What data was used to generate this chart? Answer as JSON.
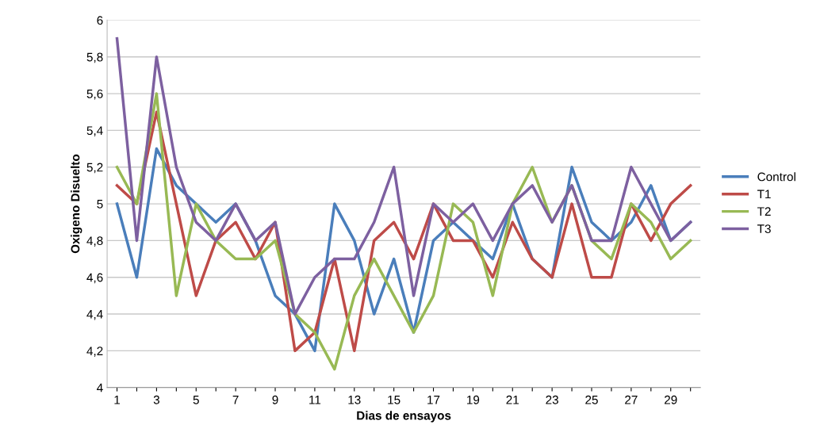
{
  "chart_data": {
    "type": "line",
    "xlabel": "Dias de ensayos",
    "ylabel": "Oxigeno Disuelto",
    "categories": [
      "1",
      null,
      "3",
      null,
      "5",
      null,
      "7",
      null,
      "9",
      null,
      "11",
      null,
      "13",
      null,
      "15",
      null,
      "17",
      null,
      "19",
      null,
      "21",
      null,
      "23",
      null,
      "25",
      null,
      "27",
      null,
      "29",
      null
    ],
    "series": [
      {
        "name": "Control",
        "color": "#4a7ebb",
        "values": [
          5.0,
          4.6,
          5.3,
          5.1,
          5.0,
          4.9,
          5.0,
          4.8,
          4.5,
          4.4,
          4.2,
          5.0,
          4.8,
          4.4,
          4.7,
          4.3,
          4.8,
          4.9,
          4.8,
          4.7,
          5.0,
          4.7,
          4.6,
          5.2,
          4.9,
          4.8,
          4.9,
          5.1,
          4.8,
          4.9
        ]
      },
      {
        "name": "T1",
        "color": "#be4b48",
        "values": [
          5.1,
          5.0,
          5.5,
          5.0,
          4.5,
          4.8,
          4.9,
          4.7,
          4.9,
          4.2,
          4.3,
          4.7,
          4.2,
          4.8,
          4.9,
          4.7,
          5.0,
          4.8,
          4.8,
          4.6,
          4.9,
          4.7,
          4.6,
          5.0,
          4.6,
          4.6,
          5.0,
          4.8,
          5.0,
          5.1
        ]
      },
      {
        "name": "T2",
        "color": "#98b954",
        "values": [
          5.2,
          5.0,
          5.6,
          4.5,
          5.0,
          4.8,
          4.7,
          4.7,
          4.8,
          4.4,
          4.3,
          4.1,
          4.5,
          4.7,
          4.5,
          4.3,
          4.5,
          5.0,
          4.9,
          4.5,
          5.0,
          5.2,
          4.9,
          5.1,
          4.8,
          4.7,
          5.0,
          4.9,
          4.7,
          4.8
        ]
      },
      {
        "name": "T3",
        "color": "#7d60a0",
        "values": [
          5.9,
          4.8,
          5.8,
          5.2,
          4.9,
          4.8,
          5.0,
          4.8,
          4.9,
          4.4,
          4.6,
          4.7,
          4.7,
          4.9,
          5.2,
          4.5,
          5.0,
          4.9,
          5.0,
          4.8,
          5.0,
          5.1,
          4.9,
          5.1,
          4.8,
          4.8,
          5.2,
          5.0,
          4.8,
          4.9
        ]
      }
    ],
    "ylim": [
      4,
      6
    ],
    "yticks": [
      4,
      {
        "value": 4.2,
        "label": "4,2"
      },
      {
        "value": 4.4,
        "label": "4,4"
      },
      {
        "value": 4.6,
        "label": "4,6"
      },
      {
        "value": 4.8,
        "label": "4,8"
      },
      5,
      {
        "value": 5.2,
        "label": "5,2"
      },
      {
        "value": 5.4,
        "label": "5,4"
      },
      {
        "value": 5.6,
        "label": "5,6"
      },
      {
        "value": 5.8,
        "label": "5,8"
      },
      6
    ],
    "grid": "y",
    "legend": "right",
    "marker": "none",
    "line_style": "solid"
  }
}
